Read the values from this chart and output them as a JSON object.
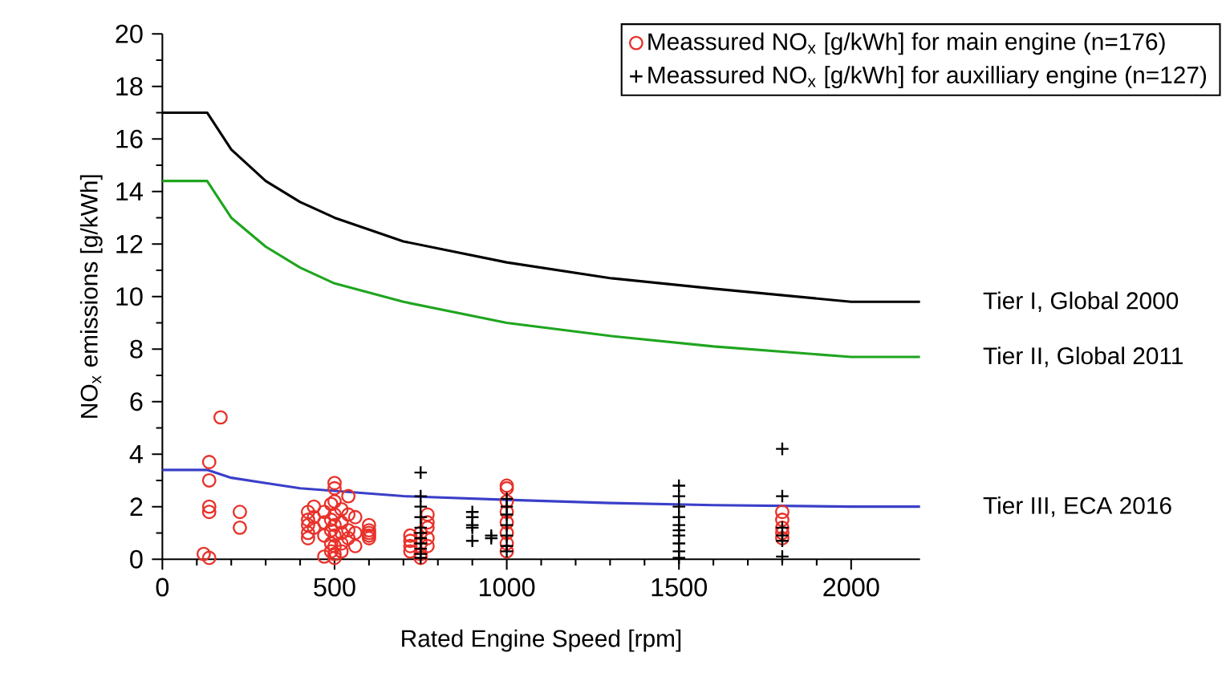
{
  "chart_data": {
    "type": "scatter",
    "xlabel": "Rated Engine Speed [rpm]",
    "ylabel": "NO$_{x}$ emissions [g/kWh]",
    "xlim": [
      0,
      2200
    ],
    "ylim": [
      0,
      20
    ],
    "xticks": [
      0,
      500,
      1000,
      1500,
      2000
    ],
    "yticks": [
      0,
      2,
      4,
      6,
      8,
      10,
      12,
      14,
      16,
      18,
      20
    ],
    "legend": "top right",
    "series": [
      {
        "name": "Meassured NO$_{x}$ [g/kWh] for main engine (n=176)",
        "marker": "circle",
        "color": "#e8312a",
        "x": [
          169,
          136,
          136,
          136,
          136,
          120,
          136,
          225,
          225,
          423,
          423,
          423,
          423,
          423,
          440,
          440,
          440,
          470,
          470,
          470,
          470,
          490,
          490,
          490,
          490,
          490,
          500,
          500,
          500,
          500,
          500,
          500,
          500,
          500,
          500,
          520,
          520,
          520,
          520,
          520,
          540,
          540,
          540,
          540,
          560,
          560,
          560,
          600,
          600,
          600,
          600,
          600,
          720,
          720,
          720,
          720,
          750,
          750,
          750,
          750,
          770,
          770,
          770,
          770,
          770,
          1000,
          1000,
          1000,
          1000,
          1000,
          1000,
          1000,
          1000,
          1800,
          1800,
          1800,
          1800,
          1800
        ],
        "values": [
          5.4,
          3.7,
          3.0,
          2.0,
          1.8,
          0.2,
          0.05,
          1.8,
          1.2,
          1.8,
          1.5,
          1.3,
          1.0,
          0.8,
          2.0,
          1.6,
          1.2,
          1.8,
          1.4,
          0.9,
          0.1,
          2.1,
          1.5,
          1.1,
          0.6,
          0.3,
          2.9,
          2.7,
          2.2,
          1.7,
          1.3,
          0.9,
          0.5,
          0.2,
          0.05,
          1.9,
          1.4,
          1.0,
          0.6,
          0.3,
          2.4,
          1.7,
          1.1,
          0.8,
          1.6,
          1.0,
          0.5,
          1.3,
          1.1,
          1.0,
          0.9,
          0.8,
          0.9,
          0.7,
          0.5,
          0.3,
          1.0,
          0.6,
          0.2,
          0.05,
          1.7,
          1.4,
          1.2,
          0.8,
          0.5,
          2.8,
          2.7,
          2.2,
          1.8,
          1.4,
          1.0,
          0.6,
          0.3,
          1.8,
          1.5,
          1.2,
          1.0,
          0.8
        ]
      },
      {
        "name": "Meassured NO$_{x}$ [g/kWh] for auxilliary engine (n=127)",
        "marker": "cross",
        "color": "#000000",
        "x": [
          750,
          750,
          750,
          750,
          750,
          750,
          750,
          750,
          750,
          750,
          750,
          900,
          900,
          900,
          900,
          900,
          955,
          955,
          1000,
          1000,
          1000,
          1000,
          1000,
          1000,
          1000,
          1500,
          1500,
          1500,
          1500,
          1500,
          1500,
          1500,
          1500,
          1500,
          1500,
          1800,
          1800,
          1800,
          1800,
          1800,
          1800
        ],
        "values": [
          3.3,
          2.4,
          2.0,
          1.6,
          1.2,
          1.0,
          0.8,
          0.6,
          0.4,
          0.2,
          0.05,
          1.8,
          1.6,
          1.3,
          1.2,
          0.7,
          0.9,
          0.8,
          2.3,
          2.0,
          1.7,
          1.3,
          0.9,
          0.5,
          0.3,
          2.8,
          2.4,
          2.0,
          1.6,
          1.3,
          1.1,
          0.9,
          0.6,
          0.3,
          0.05,
          4.2,
          2.4,
          1.2,
          0.9,
          0.7,
          0.1
        ]
      },
      {
        "name": "Tier I, Global 2000",
        "type": "line",
        "marker": "none",
        "color": "#000000",
        "x": [
          0,
          130,
          200,
          300,
          400,
          500,
          700,
          1000,
          1300,
          1600,
          2000,
          2200
        ],
        "values": [
          17.0,
          17.0,
          15.6,
          14.4,
          13.6,
          13.0,
          12.1,
          11.3,
          10.7,
          10.3,
          9.8,
          9.8
        ]
      },
      {
        "name": "Tier II, Global 2011",
        "type": "line",
        "marker": "none",
        "color": "#1fa51f",
        "x": [
          0,
          130,
          200,
          300,
          400,
          500,
          700,
          1000,
          1300,
          1600,
          2000,
          2200
        ],
        "values": [
          14.4,
          14.4,
          13.0,
          11.9,
          11.1,
          10.5,
          9.8,
          9.0,
          8.5,
          8.1,
          7.7,
          7.7
        ]
      },
      {
        "name": "Tier III, ECA 2016",
        "type": "line",
        "marker": "none",
        "color": "#3a3fc8",
        "x": [
          0,
          130,
          200,
          300,
          400,
          500,
          700,
          1000,
          1300,
          1600,
          2000,
          2200
        ],
        "values": [
          3.4,
          3.4,
          3.1,
          2.9,
          2.7,
          2.6,
          2.4,
          2.26,
          2.14,
          2.06,
          2.0,
          2.0
        ]
      }
    ]
  }
}
